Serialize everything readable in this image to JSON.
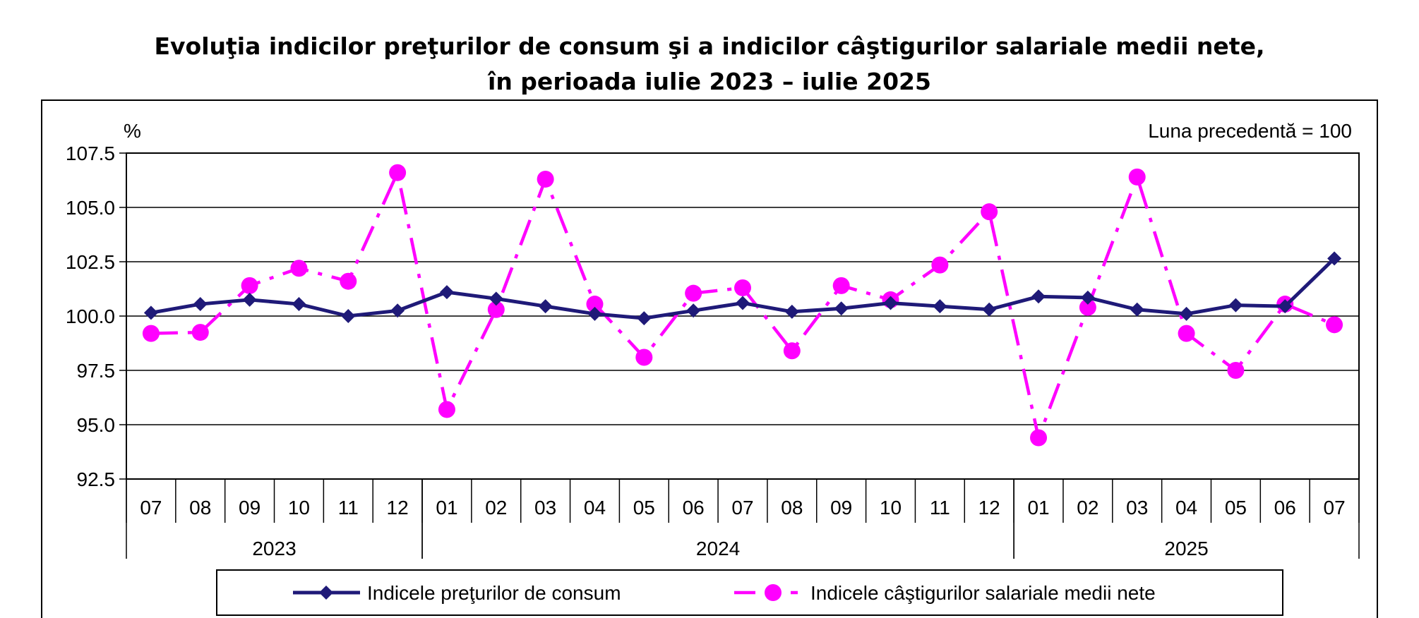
{
  "chart_data": {
    "type": "line",
    "title_line1": "Evoluţia indicilor preţurilor de consum şi a indicilor câştigurilor salariale medii nete,",
    "title_line2": "în perioada iulie 2023 – iulie 2025",
    "ylabel": "%",
    "note": "Luna precedentă = 100",
    "ylim": [
      92.5,
      107.5
    ],
    "yticks": [
      "107.5",
      "105.0",
      "102.5",
      "100.0",
      "97.5",
      "95.0",
      "92.5"
    ],
    "categories": [
      "07",
      "08",
      "09",
      "10",
      "11",
      "12",
      "01",
      "02",
      "03",
      "04",
      "05",
      "06",
      "07",
      "08",
      "09",
      "10",
      "11",
      "12",
      "01",
      "02",
      "03",
      "04",
      "05",
      "06",
      "07"
    ],
    "year_groups": [
      {
        "label": "2023",
        "start": 0,
        "end": 6
      },
      {
        "label": "2024",
        "start": 6,
        "end": 18
      },
      {
        "label": "2025",
        "start": 18,
        "end": 25
      }
    ],
    "series": [
      {
        "name": "Indicele preţurilor de consum",
        "color": "#1f1a78",
        "values": [
          100.15,
          100.55,
          100.75,
          100.55,
          100.0,
          100.25,
          101.1,
          100.8,
          100.45,
          100.1,
          99.9,
          100.25,
          100.6,
          100.2,
          100.35,
          100.6,
          100.45,
          100.3,
          100.9,
          100.85,
          100.3,
          100.1,
          100.5,
          100.45,
          102.65
        ]
      },
      {
        "name": "Indicele câştigurilor salariale medii nete",
        "color": "#ff00ff",
        "values": [
          99.2,
          99.25,
          101.4,
          102.2,
          101.6,
          106.6,
          95.7,
          100.3,
          106.3,
          100.55,
          98.1,
          101.05,
          101.3,
          98.4,
          101.4,
          100.75,
          102.35,
          104.8,
          94.4,
          100.4,
          106.4,
          99.2,
          97.5,
          100.55,
          99.6
        ]
      }
    ],
    "legend": [
      "Indicele preţurilor de consum",
      "Indicele câştigurilor salariale medii nete"
    ]
  }
}
